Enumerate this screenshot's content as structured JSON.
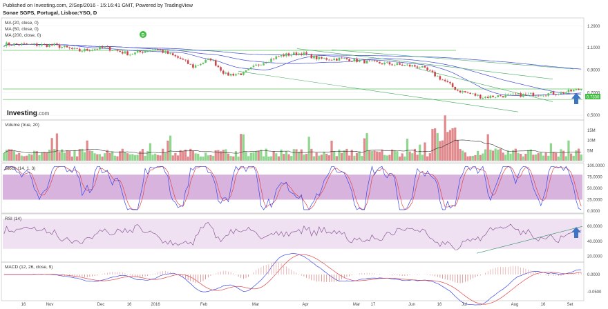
{
  "header": {
    "published": "Published on Investing.com, 2/Sep/2016 - 15:16:41 GMT, Powered by TradingView",
    "symbol": "Sonae SGPS, Portugal, Lisboa:YSO, D"
  },
  "logo": {
    "brand": "Investing",
    "suffix": ".com"
  },
  "colors": {
    "up": "#5ec35e",
    "down": "#c9474b",
    "ma_green": "#3aa65a",
    "ma_blue": "#3a46d6",
    "volume_up": "#8fd68f",
    "volume_down": "#e08a8e",
    "stoch_band": "#c99ad3",
    "rsi_band": "#e9d6ee",
    "osc_blue": "#3a46e8",
    "osc_red": "#e0444a",
    "arrow": "#3d74c4",
    "last_price_bg": "#3fbe3f"
  },
  "badge": {
    "label": "D"
  },
  "chart_data": [
    {
      "type": "candlestick",
      "name": "price",
      "legend": [
        "MA (20, close, 0)",
        "MA (50, close, 0)",
        "MA (200, close, 0)"
      ],
      "y_ticks": [
        "1.2900",
        "1.1000",
        "0.9000",
        "0.7000",
        "0.5000"
      ],
      "y_tick_values": [
        1.29,
        1.1,
        0.9,
        0.7,
        0.5
      ],
      "ylim": [
        0.47,
        1.35
      ],
      "last_price_label": "0.7330",
      "last_price": 0.733,
      "x_labels": [
        "16",
        "Nov",
        "Dec",
        "16",
        "2016",
        "Feb",
        "Mar",
        "Apr",
        "Mar",
        "17",
        "Jun",
        "16",
        "Jul",
        "Aug",
        "16",
        "Set"
      ]
    },
    {
      "type": "bar",
      "name": "volume",
      "legend": "Volume (true, 20)",
      "y_ticks": [
        "15M",
        "10M",
        "5M"
      ],
      "y_tick_values": [
        15,
        10,
        5
      ],
      "ylim": [
        0,
        19
      ]
    },
    {
      "type": "line",
      "name": "stoch",
      "legend": "Stoch (14, 1, 3)",
      "y_ticks": [
        "100.0000",
        "75.0000",
        "50.0000",
        "25.0000",
        "0.0000"
      ],
      "y_tick_values": [
        100,
        75,
        50,
        25,
        0
      ],
      "ylim": [
        0,
        100
      ],
      "band": [
        25,
        80
      ]
    },
    {
      "type": "line",
      "name": "rsi",
      "legend": "RSI (14)",
      "y_ticks": [
        "60.0000",
        "40.0000",
        "20.0000"
      ],
      "y_tick_values": [
        60,
        40,
        20
      ],
      "ylim": [
        14,
        74
      ],
      "band": [
        30,
        70
      ]
    },
    {
      "type": "line",
      "name": "macd",
      "legend": "MACD (12, 26, close, 9)",
      "y_ticks": [
        "0.0000",
        "-0.0500"
      ],
      "y_tick_values": [
        0,
        -0.05
      ],
      "ylim": [
        -0.07,
        0.03
      ]
    }
  ]
}
